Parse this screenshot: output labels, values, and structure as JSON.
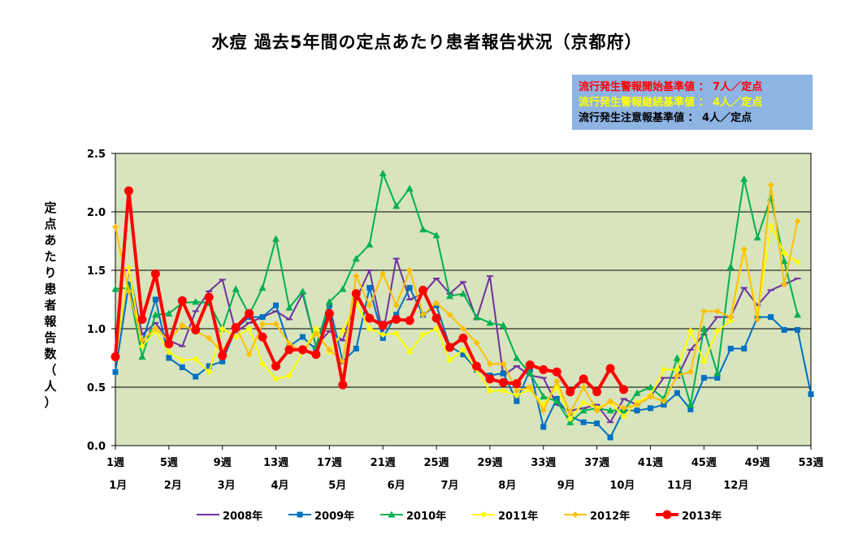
{
  "title": "水痘 過去5年間の定点あたり患者報告状況（京都府）",
  "notice": [
    {
      "text": "流行発生警報開始基準値 ： 7人／定点",
      "color": "#ff0000"
    },
    {
      "text": "流行発生警報継続基準値 ： 4人／定点",
      "color": "#ffff00"
    },
    {
      "text": "流行発生注意報基準値 ： 4人／定点",
      "color": "#000000"
    }
  ],
  "chart_data": {
    "type": "line",
    "ylabel": "定点あたり患者報告数（人）",
    "ylim": [
      0,
      2.5
    ],
    "yticks": [
      "0.0",
      "0.5",
      "1.0",
      "1.5",
      "2.0",
      "2.5"
    ],
    "xlim": [
      1,
      53
    ],
    "xticks": [
      {
        "week": 1,
        "label": "1週"
      },
      {
        "week": 5,
        "label": "5週"
      },
      {
        "week": 9,
        "label": "9週"
      },
      {
        "week": 13,
        "label": "13週"
      },
      {
        "week": 17,
        "label": "17週"
      },
      {
        "week": 21,
        "label": "21週"
      },
      {
        "week": 25,
        "label": "25週"
      },
      {
        "week": 29,
        "label": "29週"
      },
      {
        "week": 33,
        "label": "33週"
      },
      {
        "week": 37,
        "label": "37週"
      },
      {
        "week": 41,
        "label": "41週"
      },
      {
        "week": 45,
        "label": "45週"
      },
      {
        "week": 49,
        "label": "49週"
      },
      {
        "week": 53,
        "label": "53週"
      }
    ],
    "months": [
      {
        "week": 1.2,
        "label": "1月"
      },
      {
        "week": 5.3,
        "label": "2月"
      },
      {
        "week": 9.3,
        "label": "3月"
      },
      {
        "week": 13.3,
        "label": "4月"
      },
      {
        "week": 17.6,
        "label": "5月"
      },
      {
        "week": 22,
        "label": "6月"
      },
      {
        "week": 26,
        "label": "7月"
      },
      {
        "week": 30.3,
        "label": "8月"
      },
      {
        "week": 34.7,
        "label": "9月"
      },
      {
        "week": 38.9,
        "label": "10月"
      },
      {
        "week": 43.2,
        "label": "11月"
      },
      {
        "week": 47.4,
        "label": "12月"
      }
    ],
    "grid": true,
    "legend_position": "bottom",
    "plot_background": "#d7e4bd",
    "series": [
      {
        "name": "2008年",
        "color": "#7030a0",
        "marker": "dash",
        "width": 2,
        "values": [
          0.75,
          1.5,
          0.95,
          1.05,
          0.9,
          0.85,
          1.15,
          1.32,
          1.42,
          0.97,
          1.05,
          1.1,
          1.15,
          1.08,
          1.3,
          0.85,
          0.98,
          0.9,
          1.25,
          1.5,
          0.95,
          1.6,
          1.25,
          1.3,
          1.43,
          1.3,
          1.4,
          1.08,
          1.45,
          0.6,
          0.68,
          0.6,
          0.58,
          0.35,
          0.3,
          0.32,
          0.35,
          0.2,
          0.4,
          0.35,
          0.42,
          0.58,
          0.58,
          0.82,
          0.95,
          1.1,
          1.1,
          1.35,
          1.2,
          1.33,
          1.38,
          1.43
        ]
      },
      {
        "name": "2009年",
        "color": "#0070c0",
        "marker": "square",
        "width": 2,
        "values": [
          0.63,
          1.38,
          0.88,
          1.25,
          0.75,
          0.67,
          0.59,
          0.68,
          0.72,
          1.0,
          1.1,
          1.1,
          1.2,
          0.85,
          0.93,
          0.82,
          1.2,
          0.72,
          0.83,
          1.35,
          0.92,
          1.12,
          1.35,
          1.12,
          1.2,
          0.85,
          0.78,
          0.65,
          0.6,
          0.62,
          0.38,
          0.65,
          0.16,
          0.4,
          0.25,
          0.2,
          0.19,
          0.07,
          0.3,
          0.3,
          0.32,
          0.35,
          0.45,
          0.31,
          0.58,
          0.58,
          0.83,
          0.83,
          1.1,
          1.1,
          0.99,
          0.99,
          0.44
        ]
      },
      {
        "name": "2010年",
        "color": "#00b050",
        "marker": "triangle",
        "width": 2,
        "values": [
          1.34,
          1.35,
          0.76,
          1.12,
          1.13,
          1.22,
          1.23,
          1.22,
          1.0,
          1.34,
          1.12,
          1.35,
          1.77,
          1.18,
          1.32,
          0.85,
          1.23,
          1.34,
          1.6,
          1.72,
          2.33,
          2.05,
          2.2,
          1.85,
          1.8,
          1.28,
          1.3,
          1.1,
          1.05,
          1.03,
          0.75,
          0.62,
          0.42,
          0.38,
          0.2,
          0.3,
          0.32,
          0.3,
          0.3,
          0.45,
          0.5,
          0.4,
          0.75,
          0.35,
          1.0,
          0.62,
          1.53,
          2.28,
          1.78,
          2.12,
          1.58,
          1.12
        ]
      },
      {
        "name": "2011年",
        "color": "#ffff00",
        "marker": "diamond",
        "width": 2,
        "values": [
          0.75,
          1.52,
          0.85,
          0.98,
          0.8,
          0.73,
          0.74,
          0.63,
          1.0,
          0.93,
          1.0,
          0.7,
          0.57,
          0.6,
          0.8,
          1.0,
          0.8,
          0.98,
          1.22,
          1.0,
          0.95,
          0.96,
          0.8,
          0.95,
          1.0,
          0.73,
          0.82,
          0.65,
          0.47,
          0.47,
          0.43,
          0.48,
          0.35,
          0.5,
          0.23,
          0.37,
          0.32,
          0.37,
          0.25,
          0.37,
          0.43,
          0.65,
          0.65,
          0.98,
          0.72,
          0.98,
          1.07,
          1.67,
          1.12,
          1.88,
          1.65,
          1.57
        ]
      },
      {
        "name": "2012年",
        "color": "#ffc000",
        "marker": "diamond",
        "width": 2,
        "values": [
          1.87,
          1.32,
          0.9,
          1.0,
          0.9,
          1.03,
          0.98,
          0.92,
          0.8,
          1.02,
          0.78,
          1.04,
          1.04,
          0.87,
          0.8,
          0.96,
          0.82,
          0.72,
          1.45,
          1.2,
          1.47,
          1.2,
          1.5,
          1.12,
          1.22,
          1.12,
          1.0,
          0.88,
          0.7,
          0.7,
          0.47,
          0.5,
          0.3,
          0.55,
          0.28,
          0.5,
          0.3,
          0.38,
          0.32,
          0.35,
          0.42,
          0.38,
          0.6,
          0.63,
          1.15,
          1.15,
          1.1,
          1.68,
          1.08,
          2.23,
          1.38,
          1.92
        ]
      },
      {
        "name": "2013年",
        "color": "#ff0000",
        "marker": "circle",
        "width": 4,
        "values": [
          0.76,
          2.18,
          1.08,
          1.47,
          0.87,
          1.24,
          0.99,
          1.27,
          0.77,
          1.01,
          1.13,
          0.93,
          0.68,
          0.82,
          0.82,
          0.78,
          1.13,
          0.52,
          1.3,
          1.09,
          1.03,
          1.08,
          1.07,
          1.33,
          1.09,
          0.84,
          0.92,
          0.68,
          0.57,
          0.54,
          0.53,
          0.69,
          0.65,
          0.63,
          0.46,
          0.57,
          0.46,
          0.66,
          0.48
        ]
      }
    ]
  }
}
